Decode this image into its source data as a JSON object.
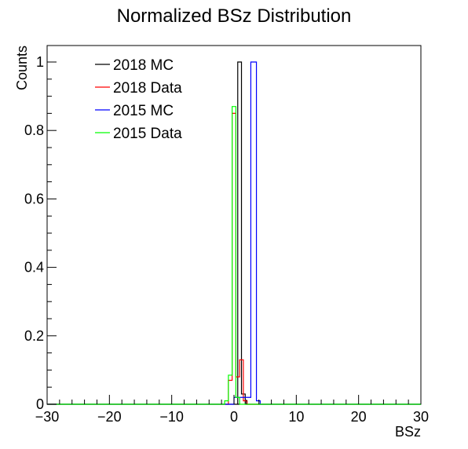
{
  "chart_data": {
    "type": "line",
    "title": "Normalized BSz Distribution",
    "xlabel": "BSz",
    "ylabel": "Counts",
    "xlim": [
      -30,
      30
    ],
    "ylim": [
      0,
      1.05
    ],
    "bin_width": 0.6,
    "x_ticks": [
      -30,
      -20,
      -10,
      0,
      10,
      20,
      30
    ],
    "x_tick_labels": [
      "−30",
      "−20",
      "−10",
      "0",
      "10",
      "20",
      "30"
    ],
    "y_ticks": [
      0,
      0.2,
      0.4,
      0.6,
      0.8,
      1
    ],
    "y_tick_labels": [
      "0",
      "0.2",
      "0.4",
      "0.6",
      "0.8",
      "1"
    ],
    "legend_position": "top-left",
    "series": [
      {
        "name": "2018 MC",
        "color": "#000000",
        "bins": [
          {
            "x": 0.3,
            "y": 0.0
          },
          {
            "x": 0.6,
            "y": 1.0
          },
          {
            "x": 1.2,
            "y": 0.03
          }
        ]
      },
      {
        "name": "2018 Data",
        "color": "#ff0000",
        "bins": [
          {
            "x": -0.9,
            "y": 0.07
          },
          {
            "x": -0.3,
            "y": 0.85
          },
          {
            "x": 0.3,
            "y": 0.08
          },
          {
            "x": 0.9,
            "y": 0.13
          },
          {
            "x": 1.5,
            "y": 0.01
          }
        ]
      },
      {
        "name": "2015 MC",
        "color": "#0000ff",
        "bins": [
          {
            "x": 0.0,
            "y": 0.02
          },
          {
            "x": 2.7,
            "y": 1.0
          },
          {
            "x": 3.6,
            "y": 0.01
          }
        ]
      },
      {
        "name": "2015 Data",
        "color": "#00ff00",
        "bins": [
          {
            "x": -1.5,
            "y": 0.01
          },
          {
            "x": -0.9,
            "y": 0.085
          },
          {
            "x": -0.3,
            "y": 0.87
          },
          {
            "x": 0.3,
            "y": 0.02
          },
          {
            "x": 0.9,
            "y": 0.0
          }
        ]
      }
    ]
  }
}
